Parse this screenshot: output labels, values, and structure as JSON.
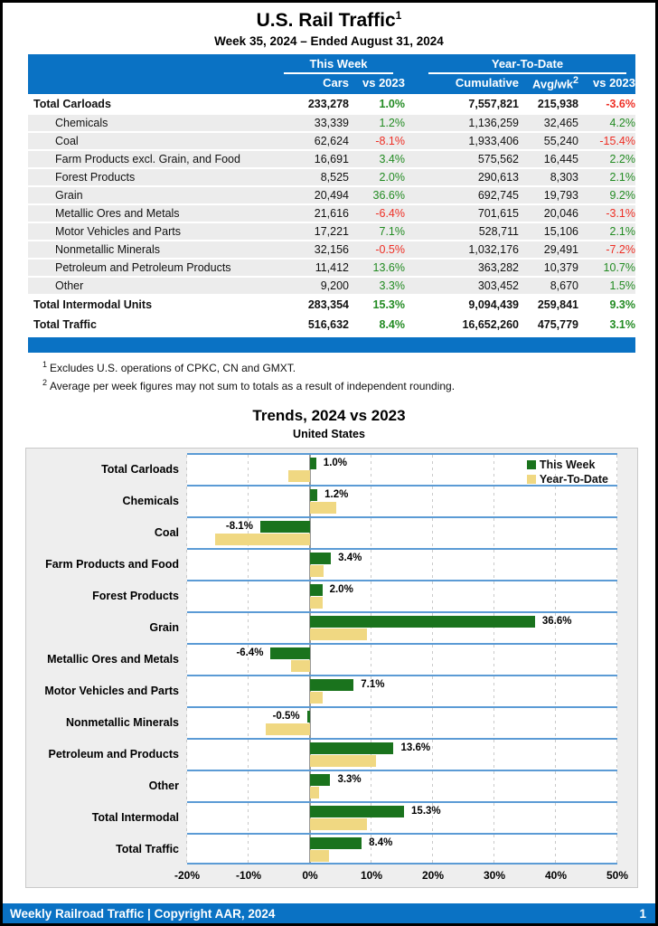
{
  "page": {
    "title": "U.S. Rail Traffic",
    "title_sup": "1",
    "subtitle": "Week 35, 2024 – Ended August 31, 2024"
  },
  "colors": {
    "header_blue": "#0a72c4",
    "positive_green": "#228B22",
    "negative_red": "#ee2e24",
    "bar_green": "#1a731d",
    "bar_tan": "#f0d882",
    "separator_blue": "#5b9bd5"
  },
  "table": {
    "group1": "This Week",
    "group2": "Year-To-Date",
    "col_cars": "Cars",
    "col_vs_week": "vs 2023",
    "col_cumulative": "Cumulative",
    "col_avgwk": "Avg/wk",
    "col_avgwk_sup": "2",
    "col_vs_ytd": "vs 2023",
    "rows": [
      {
        "label": "Total Carloads",
        "total": true,
        "cars": "233,278",
        "vs_week": "1.0%",
        "cumulative": "7,557,821",
        "avg_wk": "215,938",
        "vs_ytd": "-3.6%"
      },
      {
        "label": "Chemicals",
        "total": false,
        "cars": "33,339",
        "vs_week": "1.2%",
        "cumulative": "1,136,259",
        "avg_wk": "32,465",
        "vs_ytd": "4.2%"
      },
      {
        "label": "Coal",
        "total": false,
        "cars": "62,624",
        "vs_week": "-8.1%",
        "cumulative": "1,933,406",
        "avg_wk": "55,240",
        "vs_ytd": "-15.4%"
      },
      {
        "label": "Farm Products excl. Grain, and Food",
        "total": false,
        "cars": "16,691",
        "vs_week": "3.4%",
        "cumulative": "575,562",
        "avg_wk": "16,445",
        "vs_ytd": "2.2%"
      },
      {
        "label": "Forest Products",
        "total": false,
        "cars": "8,525",
        "vs_week": "2.0%",
        "cumulative": "290,613",
        "avg_wk": "8,303",
        "vs_ytd": "2.1%"
      },
      {
        "label": "Grain",
        "total": false,
        "cars": "20,494",
        "vs_week": "36.6%",
        "cumulative": "692,745",
        "avg_wk": "19,793",
        "vs_ytd": "9.2%"
      },
      {
        "label": "Metallic Ores and Metals",
        "total": false,
        "cars": "21,616",
        "vs_week": "-6.4%",
        "cumulative": "701,615",
        "avg_wk": "20,046",
        "vs_ytd": "-3.1%"
      },
      {
        "label": "Motor Vehicles and Parts",
        "total": false,
        "cars": "17,221",
        "vs_week": "7.1%",
        "cumulative": "528,711",
        "avg_wk": "15,106",
        "vs_ytd": "2.1%"
      },
      {
        "label": "Nonmetallic Minerals",
        "total": false,
        "cars": "32,156",
        "vs_week": "-0.5%",
        "cumulative": "1,032,176",
        "avg_wk": "29,491",
        "vs_ytd": "-7.2%"
      },
      {
        "label": "Petroleum and Petroleum Products",
        "total": false,
        "cars": "11,412",
        "vs_week": "13.6%",
        "cumulative": "363,282",
        "avg_wk": "10,379",
        "vs_ytd": "10.7%"
      },
      {
        "label": "Other",
        "total": false,
        "cars": "9,200",
        "vs_week": "3.3%",
        "cumulative": "303,452",
        "avg_wk": "8,670",
        "vs_ytd": "1.5%"
      },
      {
        "label": "Total Intermodal Units",
        "total": true,
        "cars": "283,354",
        "vs_week": "15.3%",
        "cumulative": "9,094,439",
        "avg_wk": "259,841",
        "vs_ytd": "9.3%"
      },
      {
        "label": "Total Traffic",
        "total": true,
        "cars": "516,632",
        "vs_week": "8.4%",
        "cumulative": "16,652,260",
        "avg_wk": "475,779",
        "vs_ytd": "3.1%"
      }
    ]
  },
  "footnotes": [
    {
      "sup": "1",
      "text": "Excludes U.S. operations of CPKC, CN and GMXT."
    },
    {
      "sup": "2",
      "text": "Average per week figures may not sum to totals as a result of independent rounding."
    }
  ],
  "chart_data": {
    "type": "bar",
    "orientation": "horizontal",
    "title": "Trends, 2024 vs 2023",
    "subtitle": "United States",
    "categories": [
      "Total Carloads",
      "Chemicals",
      "Coal",
      "Farm Products and Food",
      "Forest Products",
      "Grain",
      "Metallic Ores and Metals",
      "Motor Vehicles and Parts",
      "Nonmetallic Minerals",
      "Petroleum and Products",
      "Other",
      "Total Intermodal",
      "Total Traffic"
    ],
    "series": [
      {
        "name": "This Week",
        "color": "#1a731d",
        "values": [
          1.0,
          1.2,
          -8.1,
          3.4,
          2.0,
          36.6,
          -6.4,
          7.1,
          -0.5,
          13.6,
          3.3,
          15.3,
          8.4
        ]
      },
      {
        "name": "Year-To-Date",
        "color": "#f0d882",
        "values": [
          -3.6,
          4.2,
          -15.4,
          2.2,
          2.1,
          9.2,
          -3.1,
          2.1,
          -7.2,
          10.7,
          1.5,
          9.3,
          3.1
        ]
      }
    ],
    "bar_labels": [
      "1.0%",
      "1.2%",
      "-8.1%",
      "3.4%",
      "2.0%",
      "36.6%",
      "-6.4%",
      "7.1%",
      "-0.5%",
      "13.6%",
      "3.3%",
      "15.3%",
      "8.4%"
    ],
    "xlim": [
      -20,
      50
    ],
    "x_ticks": [
      {
        "v": -20,
        "label": "-20%"
      },
      {
        "v": -10,
        "label": "-10%"
      },
      {
        "v": 0,
        "label": "0%"
      },
      {
        "v": 10,
        "label": "10%"
      },
      {
        "v": 20,
        "label": "20%"
      },
      {
        "v": 30,
        "label": "30%"
      },
      {
        "v": 40,
        "label": "40%"
      },
      {
        "v": 50,
        "label": "50%"
      }
    ],
    "legend_position": "top-right",
    "grid": "vertical-dashed"
  },
  "footer": {
    "left": "Weekly Railroad Traffic | Copyright AAR, 2024",
    "page": "1"
  }
}
